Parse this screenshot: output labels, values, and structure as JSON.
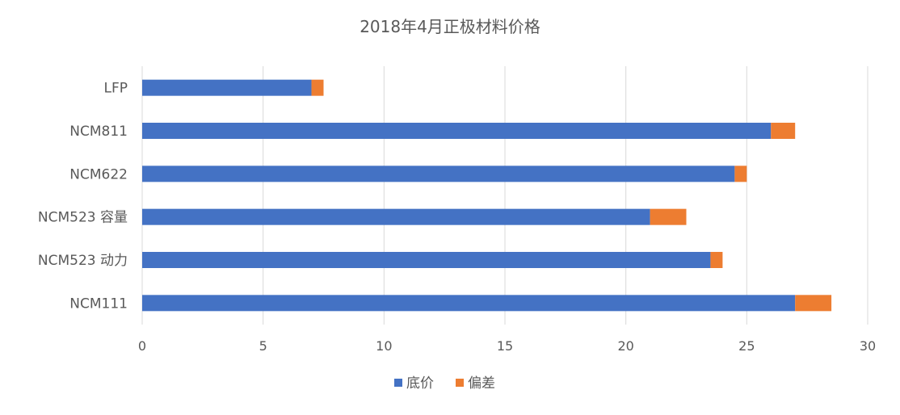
{
  "chart_data": {
    "type": "bar",
    "orientation": "horizontal",
    "stacked": true,
    "title": "2018年4月正极材料价格",
    "categories": [
      "LFP",
      "NCM811",
      "NCM622",
      "NCM523 容量",
      "NCM523 动力",
      "NCM111"
    ],
    "series": [
      {
        "name": "底价",
        "color": "#4472c4",
        "values": [
          7,
          26,
          24.5,
          21,
          23.5,
          27
        ]
      },
      {
        "name": "偏差",
        "color": "#ed7d31",
        "values": [
          0.5,
          1,
          0.5,
          1.5,
          0.5,
          1.5
        ]
      }
    ],
    "xlim": [
      0,
      30
    ],
    "xticks": [
      0,
      5,
      10,
      15,
      20,
      25,
      30
    ],
    "grid": true,
    "legend_position": "bottom"
  }
}
